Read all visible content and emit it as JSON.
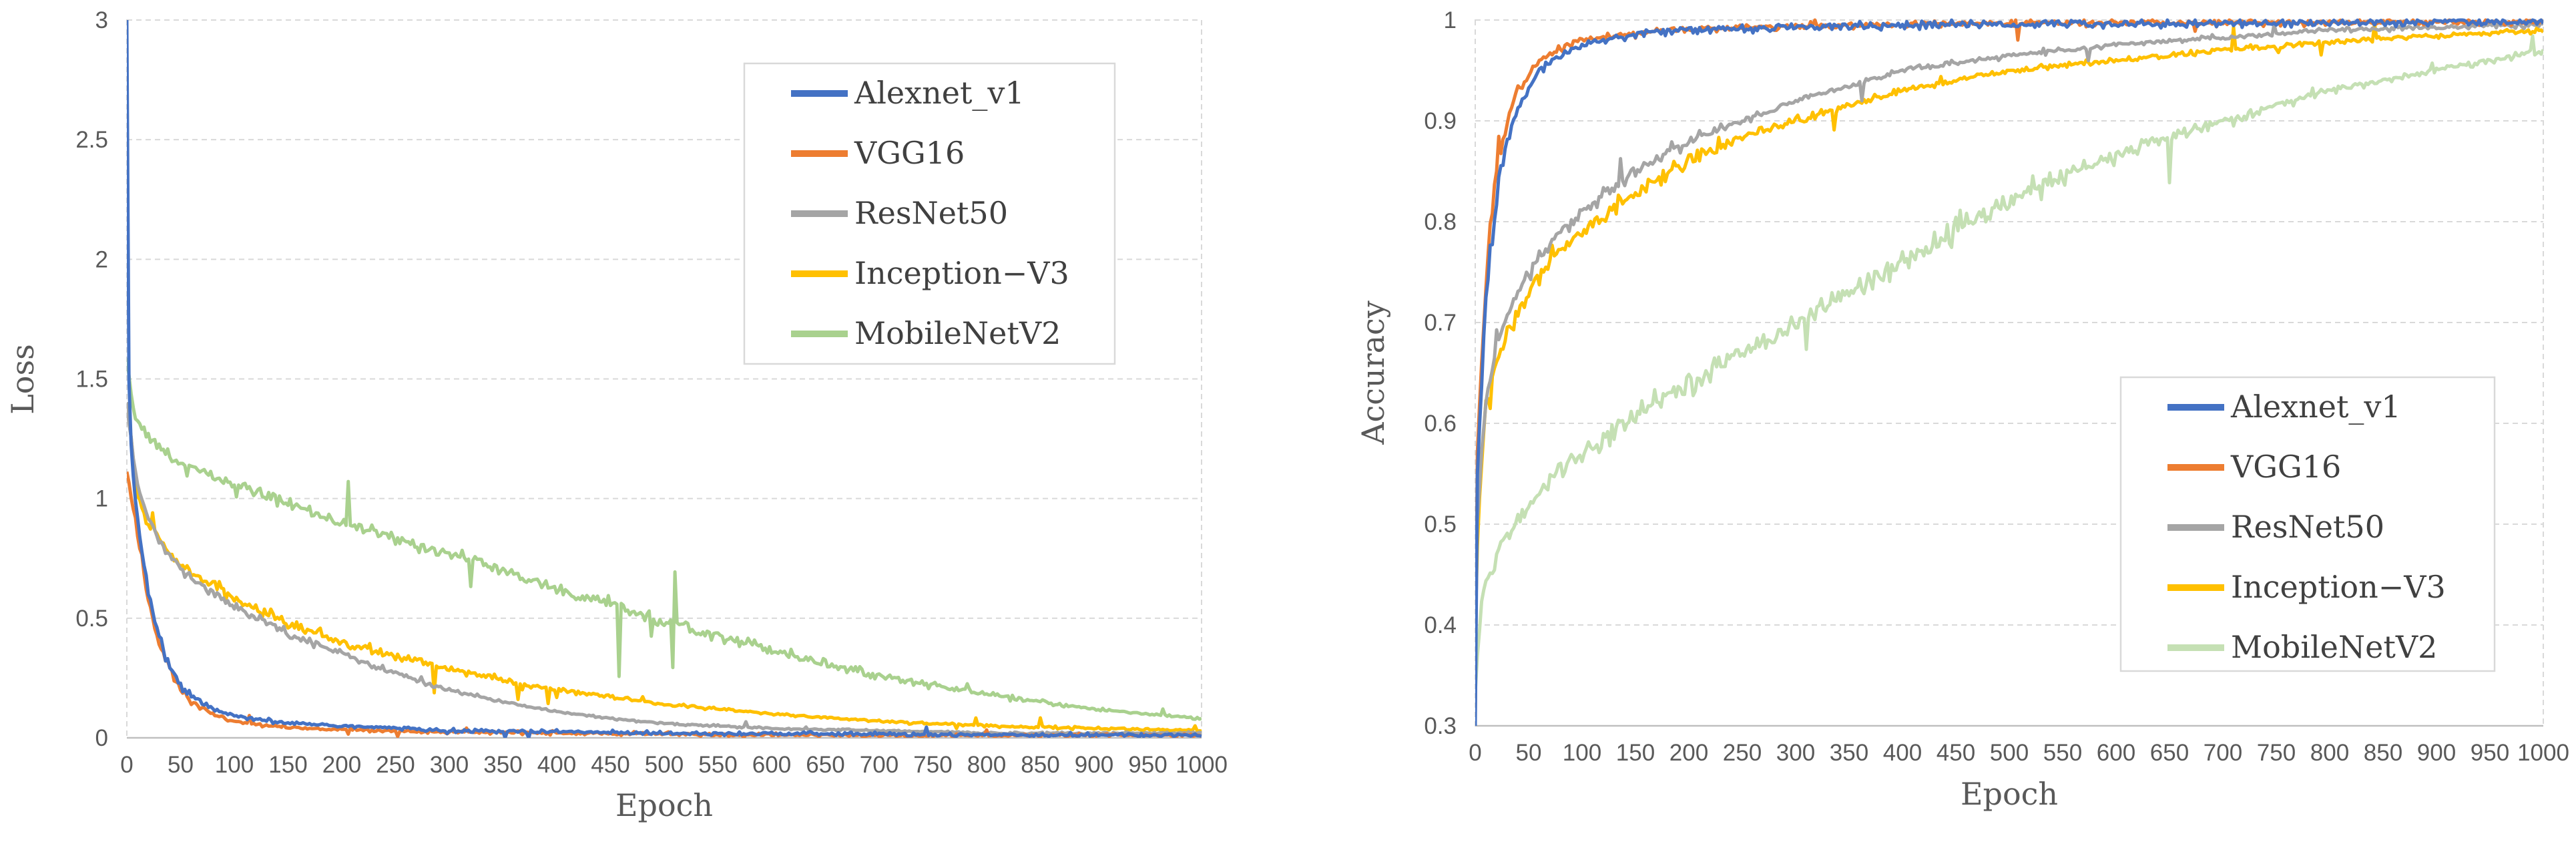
{
  "chart_data": [
    {
      "type": "line",
      "title": "",
      "xlabel": "Epoch",
      "ylabel": "Loss",
      "xlim": [
        0,
        1000
      ],
      "ylim": [
        0,
        3
      ],
      "x_ticks": [
        0,
        50,
        100,
        150,
        200,
        250,
        300,
        350,
        400,
        450,
        500,
        550,
        600,
        650,
        700,
        750,
        800,
        850,
        900,
        950,
        1000
      ],
      "y_ticks": [
        0,
        0.5,
        1,
        1.5,
        2,
        2.5,
        3
      ],
      "x_tick_labels": [
        "0",
        "50",
        "100",
        "150",
        "200",
        "250",
        "300",
        "350",
        "400",
        "450",
        "500",
        "550",
        "600",
        "650",
        "700",
        "750",
        "800",
        "850",
        "900",
        "950",
        "1000"
      ],
      "y_tick_labels": [
        "0",
        "0.5",
        "1",
        "1.5",
        "2",
        "2.5",
        "3"
      ],
      "grid": "horizontal dashed",
      "legend_position": "top-right",
      "series": [
        {
          "name": "Alexnet_v1",
          "color": "#4472C4",
          "noise": 0.028,
          "x": [
            0,
            1,
            5,
            10,
            20,
            30,
            40,
            50,
            60,
            80,
            100,
            130,
            160,
            200,
            250,
            300,
            400,
            500,
            700,
            1000
          ],
          "y": [
            3.0,
            1.6,
            1.1,
            0.9,
            0.6,
            0.42,
            0.3,
            0.22,
            0.17,
            0.12,
            0.09,
            0.07,
            0.06,
            0.05,
            0.04,
            0.03,
            0.025,
            0.02,
            0.015,
            0.01
          ]
        },
        {
          "name": "VGG16",
          "color": "#ED7D31",
          "noise": 0.024,
          "x": [
            0,
            5,
            10,
            20,
            30,
            40,
            50,
            60,
            80,
            100,
            130,
            160,
            200,
            250,
            300,
            400,
            500,
            700,
            1000
          ],
          "y": [
            1.1,
            1.0,
            0.85,
            0.58,
            0.4,
            0.28,
            0.2,
            0.15,
            0.1,
            0.07,
            0.05,
            0.04,
            0.035,
            0.03,
            0.025,
            0.02,
            0.015,
            0.01,
            0.01
          ]
        },
        {
          "name": "ResNet50",
          "color": "#A5A5A5",
          "noise": 0.016,
          "x": [
            0,
            5,
            10,
            20,
            30,
            50,
            75,
            100,
            150,
            200,
            250,
            300,
            350,
            400,
            450,
            500,
            600,
            700,
            800,
            900,
            1000
          ],
          "y": [
            1.4,
            1.2,
            1.05,
            0.92,
            0.82,
            0.7,
            0.62,
            0.55,
            0.44,
            0.35,
            0.27,
            0.2,
            0.15,
            0.11,
            0.08,
            0.06,
            0.04,
            0.03,
            0.02,
            0.02,
            0.02
          ]
        },
        {
          "name": "Inception−V3",
          "color": "#FFC000",
          "noise": 0.02,
          "x": [
            0,
            5,
            10,
            20,
            30,
            50,
            75,
            100,
            150,
            200,
            250,
            300,
            350,
            400,
            450,
            500,
            550,
            600,
            700,
            800,
            900,
            1000
          ],
          "y": [
            1.4,
            1.2,
            1.0,
            0.9,
            0.82,
            0.72,
            0.65,
            0.58,
            0.48,
            0.4,
            0.34,
            0.29,
            0.24,
            0.2,
            0.17,
            0.14,
            0.12,
            0.1,
            0.07,
            0.05,
            0.04,
            0.03
          ]
        },
        {
          "name": "MobileNetV2",
          "color": "#A9D18E",
          "noise": 0.022,
          "x": [
            0,
            5,
            10,
            20,
            30,
            50,
            75,
            100,
            150,
            200,
            250,
            300,
            350,
            400,
            450,
            500,
            550,
            600,
            650,
            700,
            750,
            800,
            850,
            900,
            950,
            1000
          ],
          "y": [
            1.6,
            1.4,
            1.32,
            1.26,
            1.22,
            1.15,
            1.1,
            1.06,
            0.98,
            0.9,
            0.83,
            0.77,
            0.7,
            0.62,
            0.56,
            0.49,
            0.43,
            0.37,
            0.31,
            0.26,
            0.22,
            0.18,
            0.15,
            0.12,
            0.1,
            0.08
          ]
        }
      ]
    },
    {
      "type": "line",
      "title": "",
      "xlabel": "Epoch",
      "ylabel": "Accuracy",
      "xlim": [
        0,
        1000
      ],
      "ylim": [
        0.3,
        1
      ],
      "x_ticks": [
        0,
        50,
        100,
        150,
        200,
        250,
        300,
        350,
        400,
        450,
        500,
        550,
        600,
        650,
        700,
        750,
        800,
        850,
        900,
        950,
        1000
      ],
      "y_ticks": [
        0.3,
        0.4,
        0.5,
        0.6,
        0.7,
        0.8,
        0.9,
        1
      ],
      "x_tick_labels": [
        "0",
        "50",
        "100",
        "150",
        "200",
        "250",
        "300",
        "350",
        "400",
        "450",
        "500",
        "550",
        "600",
        "650",
        "700",
        "750",
        "800",
        "850",
        "900",
        "950",
        "1000"
      ],
      "y_tick_labels": [
        "0.3",
        "0.4",
        "0.5",
        "0.6",
        "0.7",
        "0.8",
        "0.9",
        "1"
      ],
      "grid": "horizontal dashed",
      "legend_position": "bottom-right",
      "series": [
        {
          "name": "Alexnet_v1",
          "color": "#4472C4",
          "noise": 0.01,
          "x": [
            0,
            2,
            5,
            10,
            20,
            30,
            40,
            50,
            60,
            80,
            100,
            130,
            160,
            200,
            300,
            500,
            1000
          ],
          "y": [
            0.3,
            0.55,
            0.62,
            0.72,
            0.83,
            0.88,
            0.91,
            0.93,
            0.95,
            0.965,
            0.975,
            0.982,
            0.987,
            0.99,
            0.993,
            0.996,
            0.998
          ]
        },
        {
          "name": "VGG16",
          "color": "#ED7D31",
          "noise": 0.008,
          "x": [
            0,
            2,
            5,
            10,
            20,
            30,
            40,
            50,
            60,
            80,
            100,
            130,
            160,
            200,
            300,
            500,
            1000
          ],
          "y": [
            0.32,
            0.57,
            0.64,
            0.74,
            0.85,
            0.9,
            0.93,
            0.945,
            0.96,
            0.972,
            0.98,
            0.985,
            0.988,
            0.991,
            0.994,
            0.997,
            0.998
          ]
        },
        {
          "name": "ResNet50",
          "color": "#A5A5A5",
          "noise": 0.006,
          "x": [
            0,
            2,
            5,
            10,
            20,
            30,
            50,
            75,
            100,
            150,
            200,
            250,
            300,
            350,
            400,
            500,
            600,
            700,
            800,
            900,
            1000
          ],
          "y": [
            0.4,
            0.5,
            0.56,
            0.62,
            0.67,
            0.71,
            0.75,
            0.785,
            0.81,
            0.85,
            0.88,
            0.9,
            0.92,
            0.935,
            0.95,
            0.965,
            0.975,
            0.983,
            0.99,
            0.993,
            0.995
          ]
        },
        {
          "name": "Inception−V3",
          "color": "#FFC000",
          "noise": 0.007,
          "x": [
            0,
            2,
            5,
            10,
            20,
            30,
            50,
            75,
            100,
            150,
            200,
            250,
            300,
            350,
            400,
            500,
            600,
            700,
            800,
            900,
            1000
          ],
          "y": [
            0.4,
            0.48,
            0.55,
            0.62,
            0.66,
            0.69,
            0.73,
            0.765,
            0.79,
            0.83,
            0.86,
            0.885,
            0.9,
            0.915,
            0.93,
            0.95,
            0.96,
            0.97,
            0.978,
            0.985,
            0.99
          ]
        },
        {
          "name": "MobileNetV2",
          "color": "#C5E0B4",
          "noise": 0.009,
          "x": [
            0,
            5,
            10,
            20,
            30,
            50,
            75,
            100,
            150,
            200,
            250,
            300,
            350,
            400,
            450,
            500,
            550,
            600,
            650,
            700,
            750,
            800,
            850,
            900,
            950,
            1000
          ],
          "y": [
            0.33,
            0.42,
            0.44,
            0.47,
            0.49,
            0.52,
            0.55,
            0.57,
            0.61,
            0.64,
            0.67,
            0.7,
            0.73,
            0.76,
            0.79,
            0.82,
            0.845,
            0.865,
            0.885,
            0.9,
            0.915,
            0.93,
            0.94,
            0.95,
            0.96,
            0.97
          ]
        }
      ]
    }
  ]
}
